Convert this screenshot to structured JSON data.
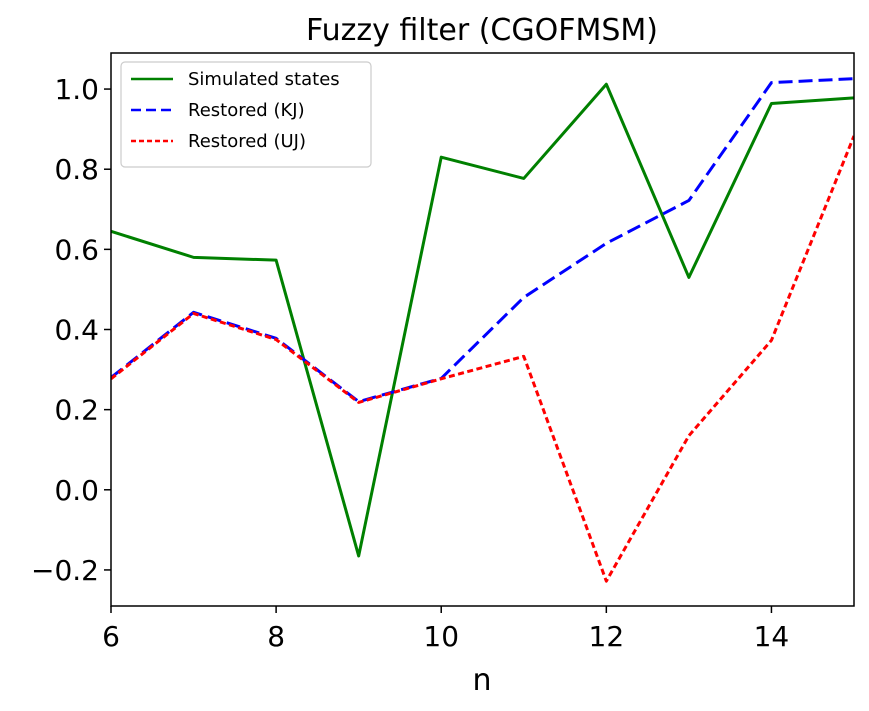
{
  "chart_data": {
    "type": "line",
    "title": "Fuzzy filter (CGOFMSM)",
    "xlabel": "n",
    "ylabel": "",
    "xlim": [
      6,
      15
    ],
    "ylim": [
      -0.29,
      1.09
    ],
    "xticks": [
      6,
      8,
      10,
      12,
      14
    ],
    "xtick_labels": [
      "6",
      "8",
      "10",
      "12",
      "14"
    ],
    "yticks": [
      -0.2,
      0.0,
      0.2,
      0.4,
      0.6,
      0.8,
      1.0
    ],
    "ytick_labels": [
      "−0.2",
      "0.0",
      "0.2",
      "0.4",
      "0.6",
      "0.8",
      "1.0"
    ],
    "grid": false,
    "legend_position": "top-left",
    "x": [
      6,
      7,
      8,
      9,
      10,
      11,
      12,
      13,
      14,
      15
    ],
    "series": [
      {
        "name": "Simulated states",
        "color": "#008000",
        "style": "solid",
        "values": [
          0.645,
          0.58,
          0.573,
          -0.165,
          0.83,
          0.777,
          1.012,
          0.53,
          0.964,
          0.978
        ]
      },
      {
        "name": "Restored (KJ)",
        "color": "#0000ff",
        "style": "dashed",
        "values": [
          0.28,
          0.443,
          0.378,
          0.22,
          0.278,
          0.48,
          0.615,
          0.722,
          1.016,
          1.026
        ]
      },
      {
        "name": "Restored (UJ)",
        "color": "#ff0000",
        "style": "dotted",
        "values": [
          0.277,
          0.44,
          0.375,
          0.218,
          0.277,
          0.333,
          -0.228,
          0.135,
          0.373,
          0.883
        ]
      }
    ]
  }
}
